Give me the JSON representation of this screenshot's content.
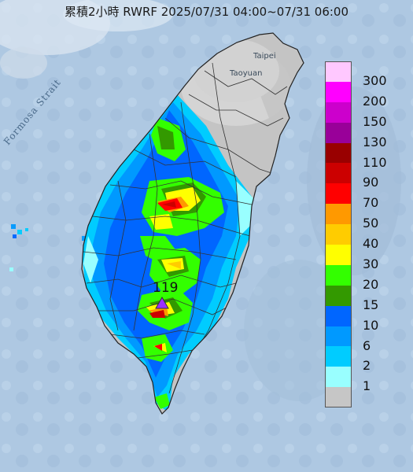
{
  "title": "累積2小時 RWRF 2025/07/31 04:00~07/31 06:00",
  "places": {
    "taipei": "Taipei",
    "taoyuan": "Taoyuan",
    "strait": "Formosa Strait"
  },
  "max_marker": {
    "value": "119",
    "icon": "triangle-marker-icon",
    "color": "#9b30ff"
  },
  "legend": [
    {
      "label": "300",
      "color": "#ffc8ff"
    },
    {
      "label": "200",
      "color": "#ff00ff"
    },
    {
      "label": "150",
      "color": "#cc00cc"
    },
    {
      "label": "130",
      "color": "#990099"
    },
    {
      "label": "110",
      "color": "#990000"
    },
    {
      "label": "90",
      "color": "#cc0000"
    },
    {
      "label": "70",
      "color": "#ff0000"
    },
    {
      "label": "50",
      "color": "#ff9900"
    },
    {
      "label": "40",
      "color": "#ffcc00"
    },
    {
      "label": "30",
      "color": "#ffff00"
    },
    {
      "label": "20",
      "color": "#33ff00"
    },
    {
      "label": "15",
      "color": "#339900"
    },
    {
      "label": "10",
      "color": "#0066ff"
    },
    {
      "label": "6",
      "color": "#0099ff"
    },
    {
      "label": "2",
      "color": "#00ccff"
    },
    {
      "label": "1",
      "color": "#99ffff"
    },
    {
      "label": "",
      "color": "#c6c6c6"
    }
  ],
  "colors": {
    "sea": "#aec8e2",
    "land_dry": "#c4c4c4",
    "terrain": "#d2d2d2",
    "border": "#333333"
  }
}
